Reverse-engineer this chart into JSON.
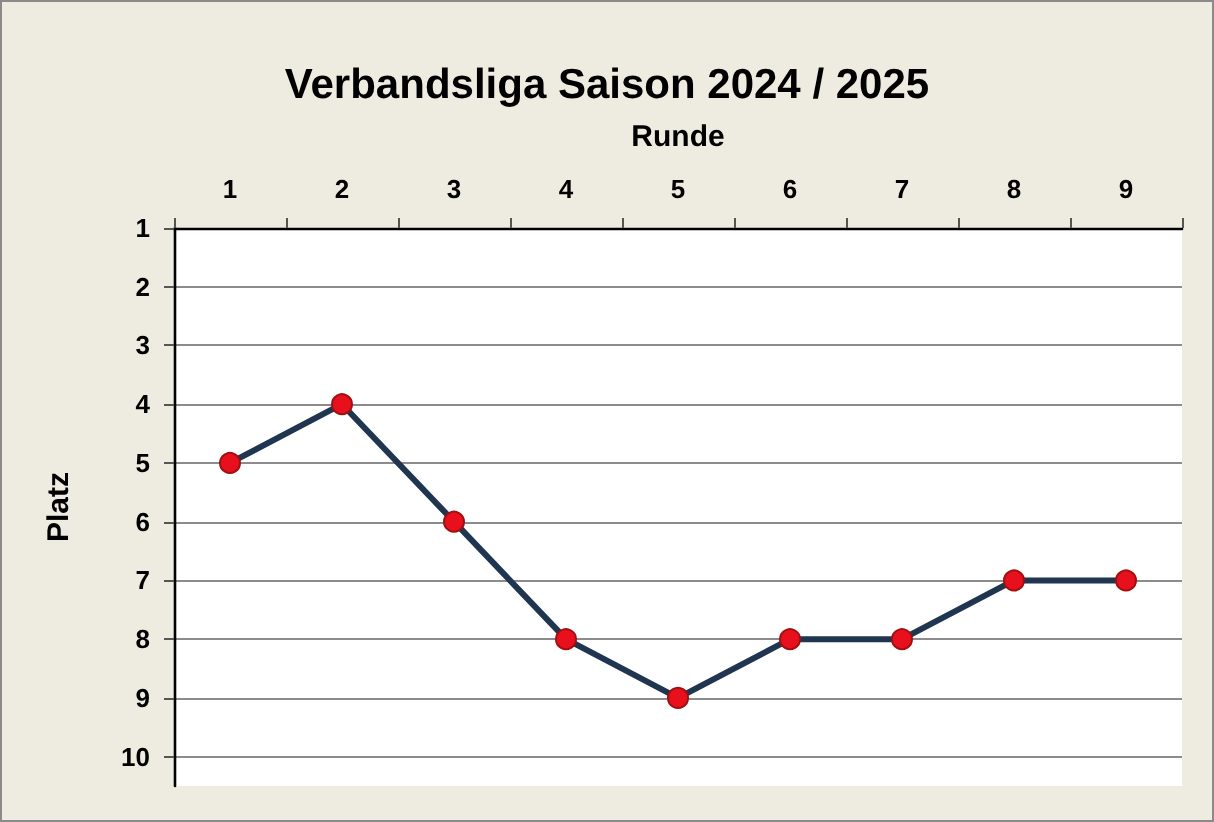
{
  "chart_data": {
    "type": "line",
    "title": "Verbandsliga Saison 2024 / 2025",
    "xlabel": "Runde",
    "ylabel": "Platz",
    "categories": [
      "1",
      "2",
      "3",
      "4",
      "5",
      "6",
      "7",
      "8",
      "9"
    ],
    "series": [
      {
        "color": "#1f3550",
        "colors": [
          "#e8101c",
          "#e8101c",
          "#e8101c",
          "#e8101c",
          "#e8101c",
          "#e8101c",
          "#e8101c",
          "#e8101c",
          "#e8101c"
        ],
        "values": [
          5,
          4,
          6,
          8,
          9,
          8,
          8,
          7,
          7
        ]
      }
    ],
    "ylim": [
      10.5,
      1
    ],
    "yticks": [
      1,
      2,
      3,
      4,
      5,
      6,
      7,
      8,
      9,
      10
    ],
    "grid": "y",
    "marker": "circle",
    "line_style": "solid"
  }
}
